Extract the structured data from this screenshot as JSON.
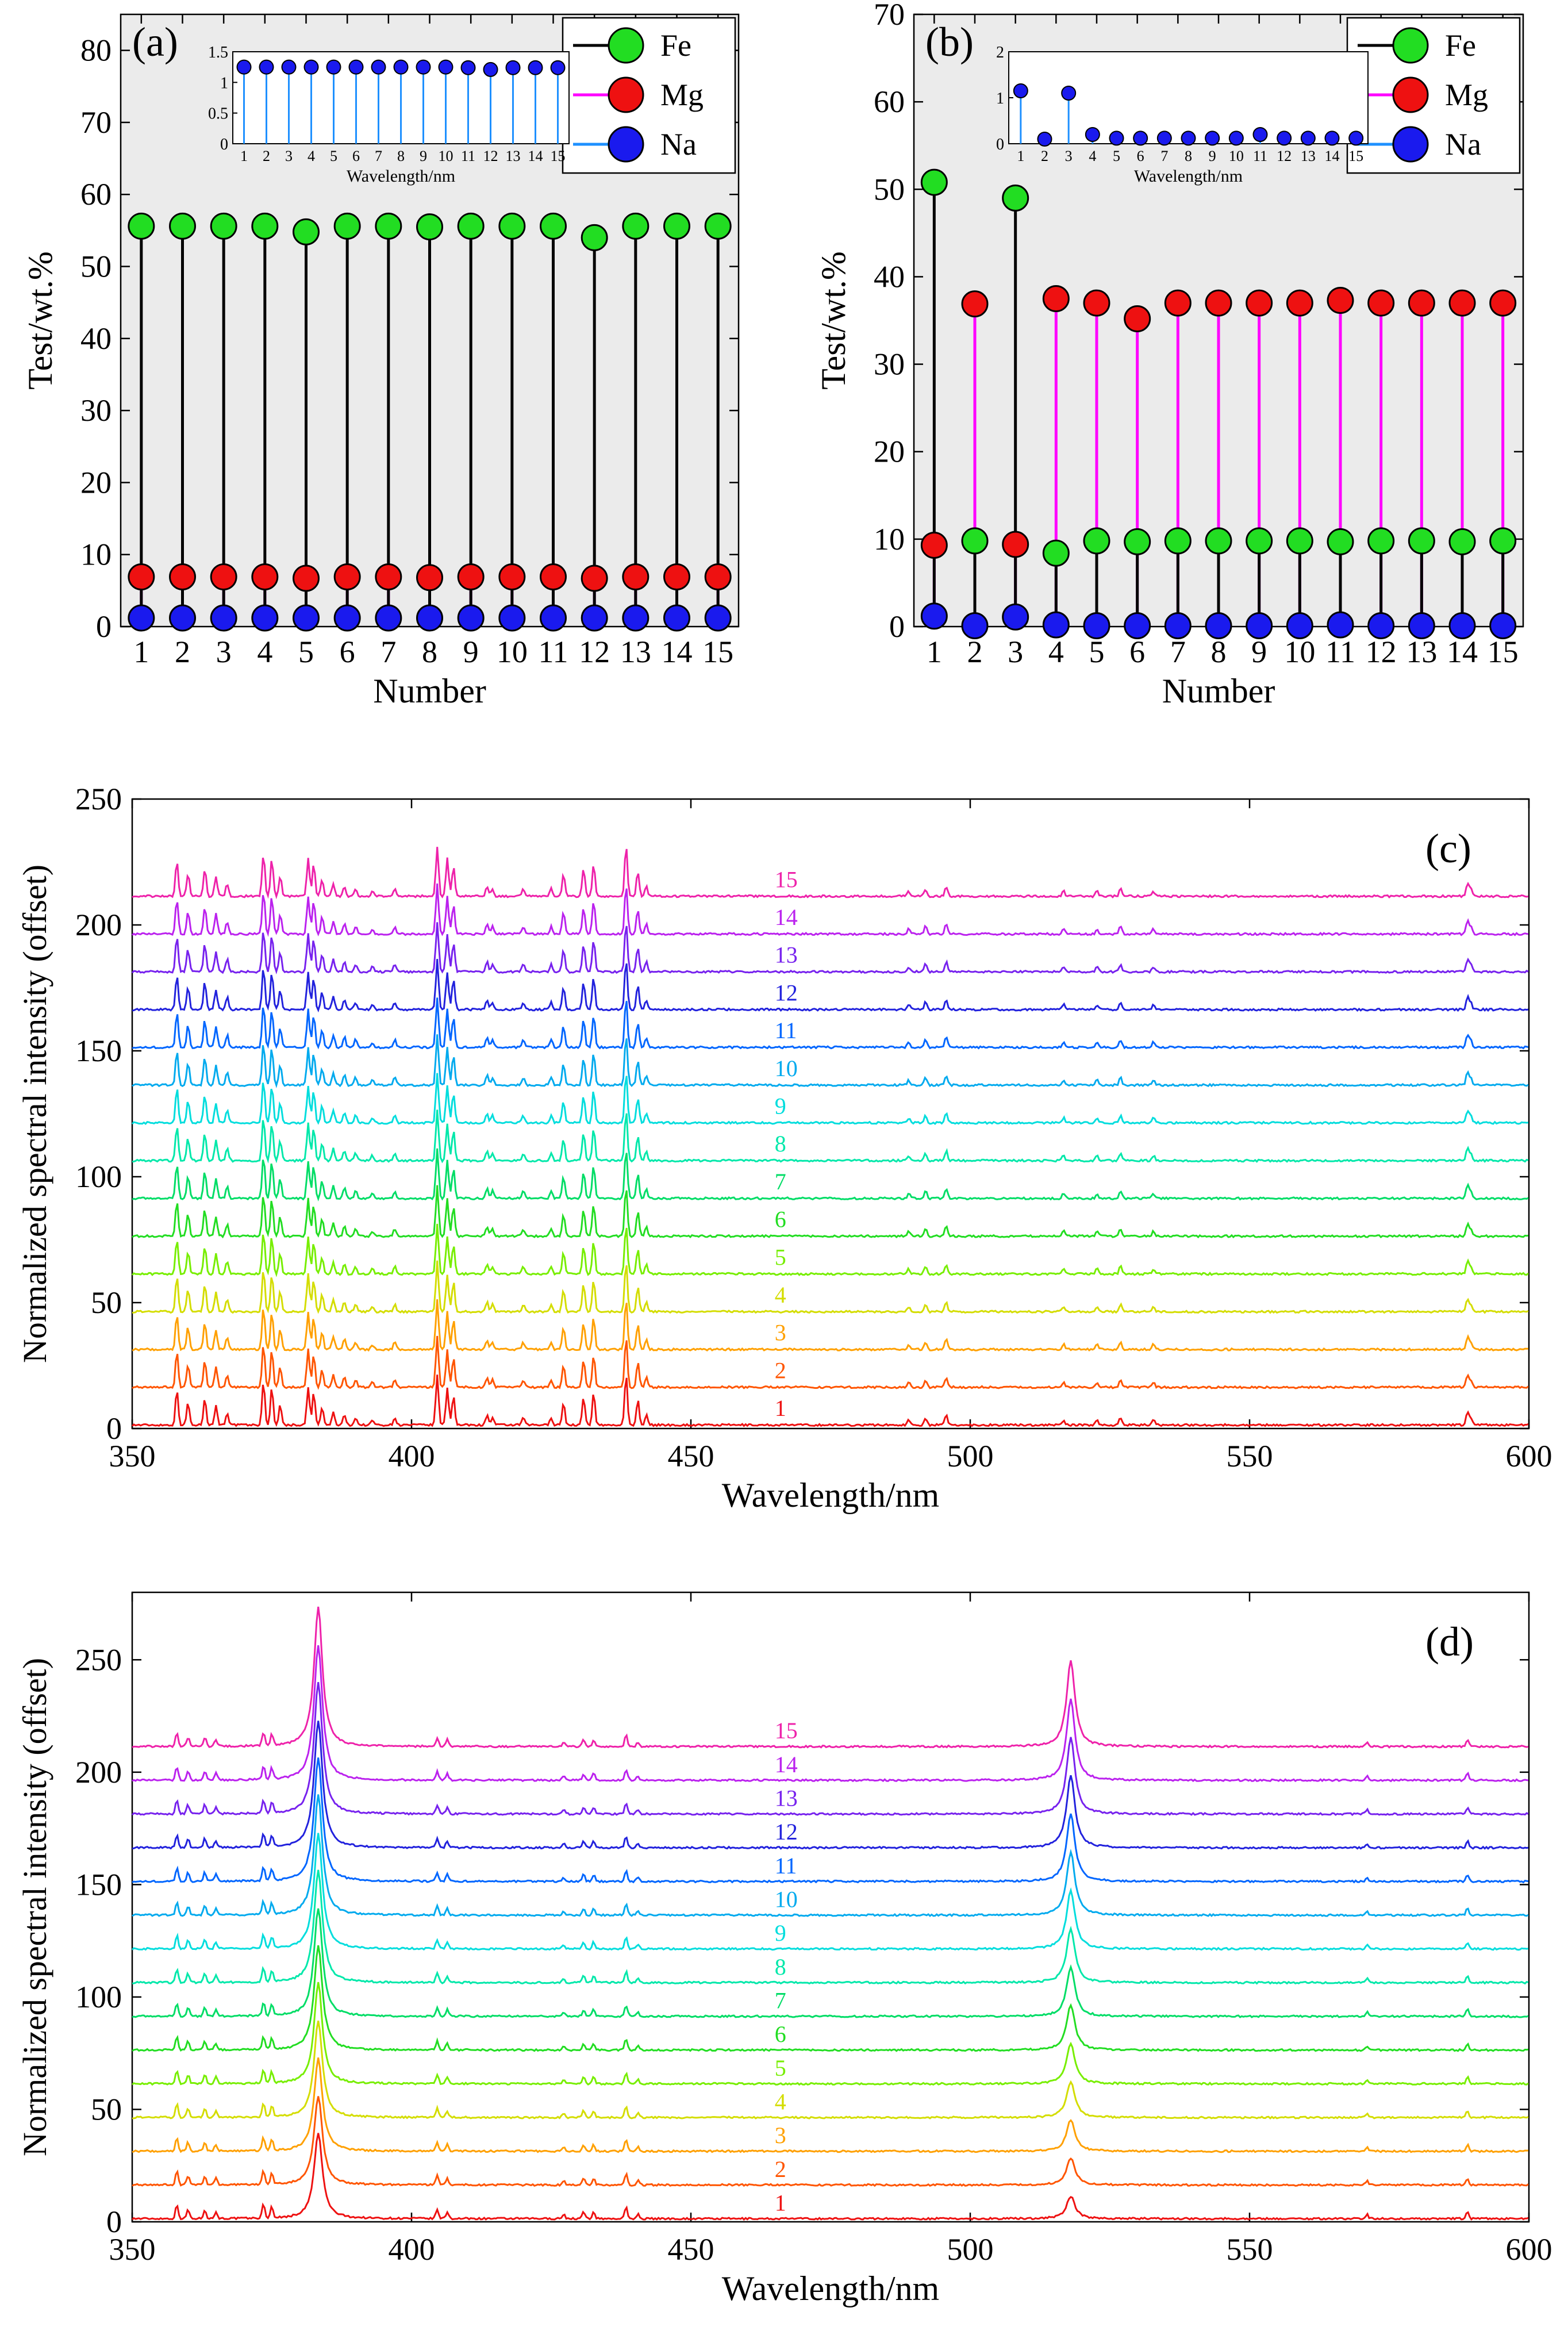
{
  "chart_data": [
    {
      "panel": "(a)",
      "type": "stem",
      "title": "",
      "xlabel": "Number",
      "ylabel": "Test/wt.%",
      "xlim": [
        0.5,
        15.5
      ],
      "ylim": [
        0,
        85
      ],
      "x_ticks": [
        1,
        2,
        3,
        4,
        5,
        6,
        7,
        8,
        9,
        10,
        11,
        12,
        13,
        14,
        15
      ],
      "y_ticks": [
        0,
        10,
        20,
        30,
        40,
        50,
        60,
        70,
        80
      ],
      "legend_position": "top-right",
      "background": "#ebebeb",
      "series": [
        {
          "name": "Fe",
          "line_color": "#000000",
          "marker_color": "#22dd22",
          "values": [
            55.6,
            55.6,
            55.6,
            55.6,
            54.8,
            55.6,
            55.6,
            55.5,
            55.6,
            55.6,
            55.6,
            54.0,
            55.6,
            55.6,
            55.6
          ]
        },
        {
          "name": "Mg",
          "line_color": "#ff00ff",
          "marker_color": "#ee1111",
          "values": [
            6.9,
            6.9,
            6.9,
            6.9,
            6.7,
            6.9,
            6.9,
            6.8,
            6.9,
            6.9,
            6.9,
            6.7,
            6.9,
            6.9,
            6.9
          ]
        },
        {
          "name": "Na",
          "line_color": "#1e90ff",
          "marker_color": "#1a1aee",
          "values": [
            1.2,
            1.2,
            1.2,
            1.2,
            1.2,
            1.2,
            1.2,
            1.2,
            1.2,
            1.2,
            1.2,
            1.2,
            1.2,
            1.2,
            1.2
          ]
        }
      ],
      "inset": {
        "xlabel": "Wavelength/nm",
        "xlim": [
          0.5,
          15.5
        ],
        "ylim": [
          0,
          1.5
        ],
        "x_ticks": [
          1,
          2,
          3,
          4,
          5,
          6,
          7,
          8,
          9,
          10,
          11,
          12,
          13,
          14,
          15
        ],
        "y_ticks": [
          "0",
          "0.5",
          "1",
          "1.5"
        ],
        "series": {
          "name": "Na",
          "line_color": "#1e90ff",
          "marker_color": "#1a1aee",
          "values": [
            1.25,
            1.25,
            1.25,
            1.25,
            1.25,
            1.25,
            1.25,
            1.25,
            1.25,
            1.25,
            1.24,
            1.21,
            1.24,
            1.24,
            1.24
          ]
        }
      }
    },
    {
      "panel": "(b)",
      "type": "stem",
      "title": "",
      "xlabel": "Number",
      "ylabel": "Test/wt.%",
      "xlim": [
        0.5,
        15.5
      ],
      "ylim": [
        0,
        70
      ],
      "x_ticks": [
        1,
        2,
        3,
        4,
        5,
        6,
        7,
        8,
        9,
        10,
        11,
        12,
        13,
        14,
        15
      ],
      "y_ticks": [
        0,
        10,
        20,
        30,
        40,
        50,
        60,
        70
      ],
      "legend_position": "top-right",
      "background": "#ebebeb",
      "series": [
        {
          "name": "Fe",
          "line_color": "#000000",
          "marker_color": "#22dd22",
          "values": [
            50.8,
            9.8,
            49.0,
            8.4,
            9.8,
            9.7,
            9.8,
            9.8,
            9.8,
            9.8,
            9.7,
            9.8,
            9.8,
            9.7,
            9.8
          ]
        },
        {
          "name": "Mg",
          "line_color": "#ff00ff",
          "marker_color": "#ee1111",
          "values": [
            9.3,
            36.9,
            9.4,
            37.5,
            37.0,
            35.2,
            37.0,
            37.0,
            37.0,
            37.0,
            37.3,
            37.0,
            37.0,
            37.0,
            37.0
          ]
        },
        {
          "name": "Na",
          "line_color": "#1e90ff",
          "marker_color": "#1a1aee",
          "values": [
            1.2,
            0.1,
            1.1,
            0.2,
            0.1,
            0.1,
            0.1,
            0.1,
            0.1,
            0.1,
            0.2,
            0.1,
            0.1,
            0.1,
            0.1
          ]
        }
      ],
      "inset": {
        "xlabel": "Wavelength/nm",
        "xlim": [
          0.5,
          15.5
        ],
        "ylim": [
          0,
          2
        ],
        "x_ticks": [
          1,
          2,
          3,
          4,
          5,
          6,
          7,
          8,
          9,
          10,
          11,
          12,
          13,
          14,
          15
        ],
        "y_ticks": [
          "0",
          "1",
          "2"
        ],
        "series": {
          "name": "Na",
          "line_color": "#1e90ff",
          "marker_color": "#1a1aee",
          "values": [
            1.15,
            0.1,
            1.1,
            0.2,
            0.12,
            0.12,
            0.12,
            0.12,
            0.12,
            0.12,
            0.2,
            0.12,
            0.12,
            0.12,
            0.12
          ]
        }
      }
    },
    {
      "panel": "(c)",
      "type": "line",
      "title": "",
      "xlabel": "Wavelength/nm",
      "ylabel": "Normalized spectral intensity (offset)",
      "xlim": [
        350,
        600
      ],
      "ylim": [
        0,
        250
      ],
      "x_ticks": [
        350,
        400,
        450,
        500,
        550,
        600
      ],
      "y_ticks": [
        0,
        50,
        100,
        150,
        200,
        250
      ],
      "offset_step": 15,
      "label_x": 465,
      "series_labels": [
        "1",
        "2",
        "3",
        "4",
        "5",
        "6",
        "7",
        "8",
        "9",
        "10",
        "11",
        "12",
        "13",
        "14",
        "15"
      ],
      "series_colors": [
        "#ee1111",
        "#ff5500",
        "#ffa000",
        "#d4dd00",
        "#77ee00",
        "#22dd22",
        "#00dd66",
        "#00e8aa",
        "#00dddd",
        "#00aaee",
        "#0066ff",
        "#2222dd",
        "#7722ee",
        "#bb22ee",
        "#ee22aa"
      ],
      "peaks": [
        {
          "x": 358,
          "h": 14
        },
        {
          "x": 360,
          "h": 9
        },
        {
          "x": 363,
          "h": 11
        },
        {
          "x": 365,
          "h": 8
        },
        {
          "x": 367,
          "h": 5
        },
        {
          "x": 373.5,
          "h": 17
        },
        {
          "x": 375,
          "h": 15
        },
        {
          "x": 376.5,
          "h": 8
        },
        {
          "x": 381.5,
          "h": 15
        },
        {
          "x": 382.5,
          "h": 13
        },
        {
          "x": 384,
          "h": 7
        },
        {
          "x": 386,
          "h": 5
        },
        {
          "x": 388,
          "h": 4
        },
        {
          "x": 390,
          "h": 3
        },
        {
          "x": 393,
          "h": 2
        },
        {
          "x": 397,
          "h": 3
        },
        {
          "x": 404.6,
          "h": 20
        },
        {
          "x": 406.4,
          "h": 15
        },
        {
          "x": 407.5,
          "h": 12
        },
        {
          "x": 413.5,
          "h": 4
        },
        {
          "x": 414.5,
          "h": 3
        },
        {
          "x": 420,
          "h": 3
        },
        {
          "x": 425,
          "h": 3
        },
        {
          "x": 427.2,
          "h": 9
        },
        {
          "x": 430.8,
          "h": 11
        },
        {
          "x": 432.6,
          "h": 13
        },
        {
          "x": 438.4,
          "h": 20
        },
        {
          "x": 440.5,
          "h": 10
        },
        {
          "x": 442,
          "h": 4
        },
        {
          "x": 489,
          "h": 2
        },
        {
          "x": 492,
          "h": 3
        },
        {
          "x": 495.7,
          "h": 4
        },
        {
          "x": 516.7,
          "h": 2
        },
        {
          "x": 522.7,
          "h": 2
        },
        {
          "x": 526.9,
          "h": 3
        },
        {
          "x": 532.8,
          "h": 2
        },
        {
          "x": 589,
          "h": 5
        },
        {
          "x": 589.6,
          "h": 3
        }
      ]
    },
    {
      "panel": "(d)",
      "type": "line",
      "title": "",
      "xlabel": "Wavelength/nm",
      "ylabel": "Normalized spectral intensity (offset)",
      "xlim": [
        350,
        600
      ],
      "ylim": [
        0,
        280
      ],
      "x_ticks": [
        350,
        400,
        450,
        500,
        550,
        600
      ],
      "y_ticks": [
        0,
        50,
        100,
        150,
        200,
        250
      ],
      "offset_step": 15,
      "label_x": 465,
      "series_labels": [
        "1",
        "2",
        "3",
        "4",
        "5",
        "6",
        "7",
        "8",
        "9",
        "10",
        "11",
        "12",
        "13",
        "14",
        "15"
      ],
      "series_colors": [
        "#ee1111",
        "#ff5500",
        "#ffa000",
        "#d4dd00",
        "#77ee00",
        "#22dd22",
        "#00dd66",
        "#00e8aa",
        "#00dddd",
        "#00aaee",
        "#0066ff",
        "#2222dd",
        "#7722ee",
        "#bb22ee",
        "#ee22aa"
      ],
      "big_peaks": [
        {
          "x": 383.3,
          "h_first": 38,
          "h_last": 62
        },
        {
          "x": 518.0,
          "h_first": 10,
          "h_last": 38
        }
      ],
      "peaks": [
        {
          "x": 358,
          "h": 6
        },
        {
          "x": 360,
          "h": 4
        },
        {
          "x": 363,
          "h": 4
        },
        {
          "x": 365,
          "h": 3
        },
        {
          "x": 373.5,
          "h": 6
        },
        {
          "x": 375,
          "h": 5
        },
        {
          "x": 404.6,
          "h": 4
        },
        {
          "x": 406.4,
          "h": 3
        },
        {
          "x": 427.2,
          "h": 2
        },
        {
          "x": 430.8,
          "h": 3
        },
        {
          "x": 432.6,
          "h": 3
        },
        {
          "x": 438.4,
          "h": 5
        },
        {
          "x": 440.5,
          "h": 2
        },
        {
          "x": 571,
          "h": 2
        },
        {
          "x": 589,
          "h": 3
        }
      ]
    }
  ]
}
